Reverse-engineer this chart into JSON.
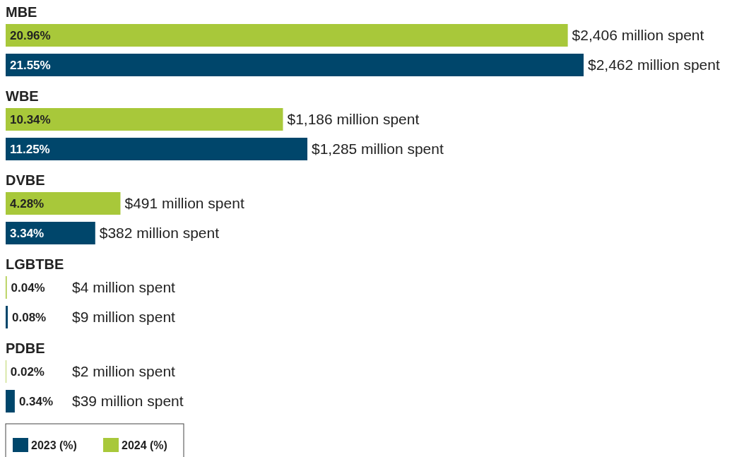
{
  "chart_data": {
    "type": "bar",
    "orientation": "horizontal",
    "categories": [
      "MBE",
      "WBE",
      "DVBE",
      "LGBTBE",
      "PDBE"
    ],
    "series": [
      {
        "name": "2024 (%)",
        "color": "#a8c83a",
        "values": [
          20.96,
          10.34,
          4.28,
          0.04,
          0.02
        ],
        "value_labels": [
          "20.96%",
          "10.34%",
          "4.28%",
          "0.04%",
          "0.02%"
        ]
      },
      {
        "name": "2023 (%)",
        "color": "#00466b",
        "values": [
          21.55,
          11.25,
          3.34,
          0.08,
          0.34
        ],
        "value_labels": [
          "21.55%",
          "11.25%",
          "3.34%",
          "0.08%",
          "0.34%"
        ]
      }
    ],
    "annotations": [
      "$2,406 million spent",
      "$2,462 million spent",
      "$1,186 million spent",
      "$1,285 million spent",
      "$491 million spent",
      "$382 million spent",
      "$4 million spent",
      "$9 million spent",
      "$2 million spent",
      "$39 million spent"
    ],
    "legend": "bottom left"
  }
}
